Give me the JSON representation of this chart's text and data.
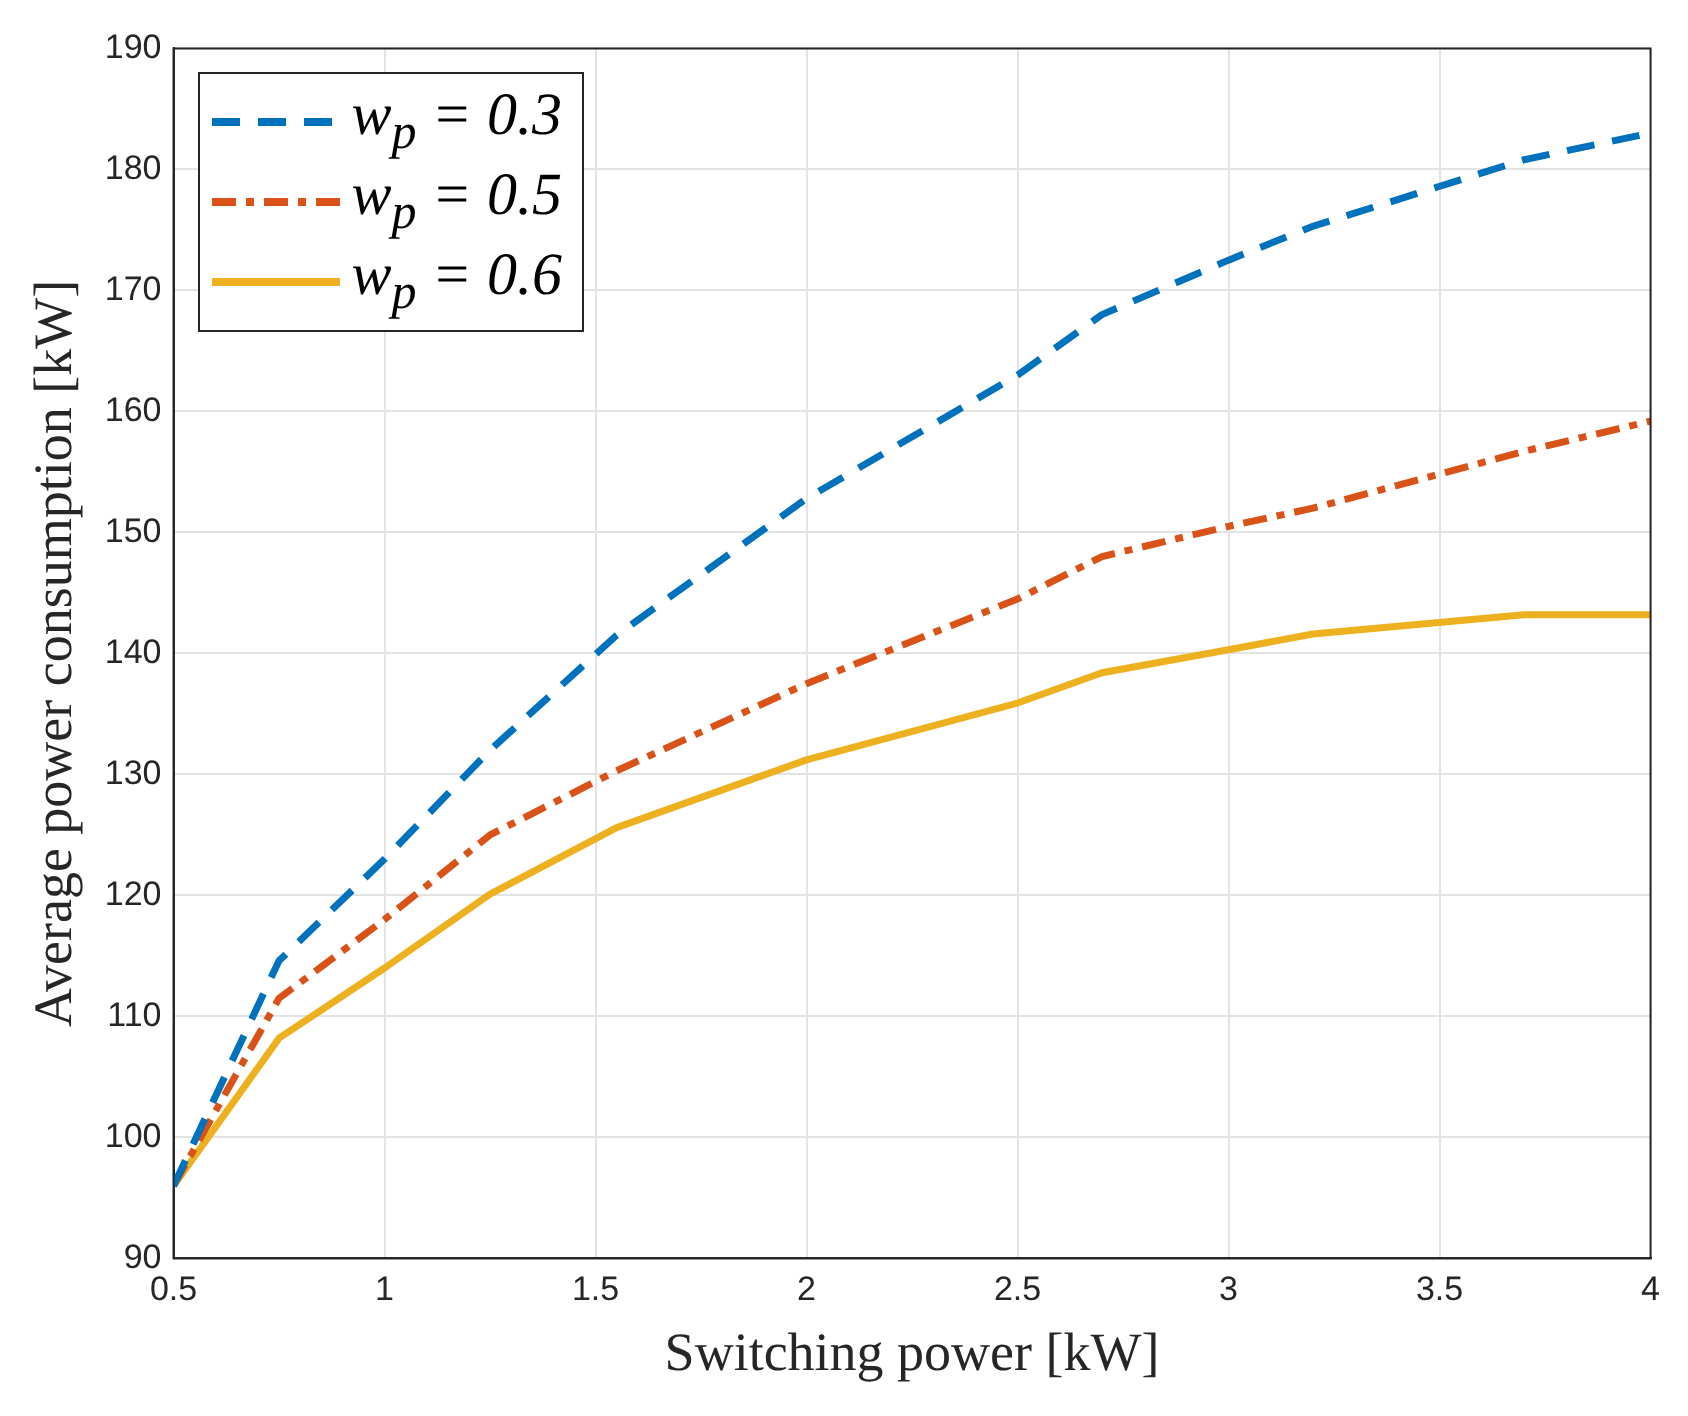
{
  "chart_data": {
    "type": "line",
    "xlabel": "Switching power [kW]",
    "ylabel": "Average power consumption [kW]",
    "x": [
      0.5,
      0.75,
      1,
      1.25,
      1.55,
      2,
      2.5,
      2.7,
      3,
      3.2,
      3.7,
      4
    ],
    "series": [
      {
        "name": "w$_{p}$ = 0.3",
        "color": "#0072bd",
        "line_style": "dashed",
        "values": [
          96,
          114.6,
          123,
          132,
          141.5,
          152.8,
          163,
          168,
          172.5,
          175.3,
          180.8,
          183
        ]
      },
      {
        "name": "w$_{p}$ = 0.5",
        "color": "#d95319",
        "line_style": "dashdot",
        "values": [
          96,
          111.5,
          118,
          125,
          130.3,
          137.5,
          144.5,
          148,
          150.5,
          152,
          156.7,
          159.2
        ]
      },
      {
        "name": "w$_{p}$ = 0.6",
        "color": "#edb120",
        "line_style": "solid",
        "values": [
          96,
          108.2,
          114,
          120.1,
          125.6,
          131.2,
          135.9,
          138.4,
          140.3,
          141.6,
          143.2,
          143.2
        ]
      }
    ],
    "xlim": [
      0.5,
      4
    ],
    "xticks": [
      0.5,
      1,
      1.5,
      2,
      2.5,
      3,
      3.5,
      4
    ],
    "ylim": [
      90,
      190
    ],
    "yticks": [
      90,
      100,
      110,
      120,
      130,
      140,
      150,
      160,
      170,
      180,
      190
    ],
    "grid": true,
    "legend": "top left",
    "marker": "none"
  }
}
